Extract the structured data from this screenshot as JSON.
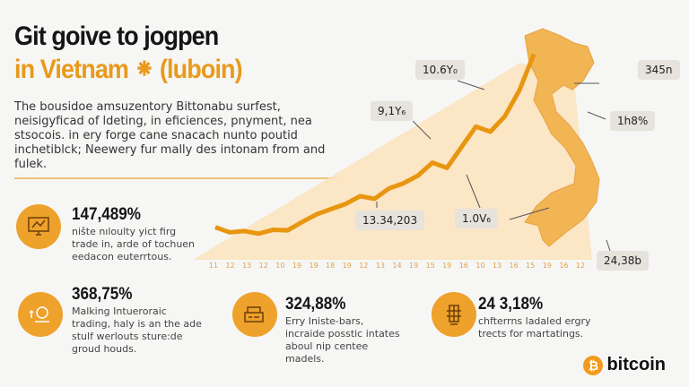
{
  "header": {
    "title_line1": "Git goive to jogpen",
    "title_line2": "in Vietnam ⁕ (luboin)"
  },
  "intro": "The bousidoe amsuzentory Bittonabu surfest, neisigyficad of ldeting, in eficiences, pnyment, nea stsocois. in ery forge cane snacach nunto poutid inchetiblck; Neewery fur mally des intonam from and fulek.",
  "chart_data": {
    "type": "line",
    "title": "",
    "x_tick_labels": [
      "11",
      "12",
      "13",
      "12",
      "10",
      "19",
      "19",
      "18",
      "19",
      "12",
      "13",
      "14",
      "19",
      "15",
      "19",
      "16",
      "10",
      "13",
      "16",
      "15",
      "19",
      "16",
      "12"
    ],
    "values": [
      5,
      3,
      3.5,
      2.5,
      4,
      3.8,
      7,
      10,
      12,
      14,
      17,
      16,
      20,
      22,
      25,
      30,
      28,
      36,
      44,
      42,
      48,
      58,
      72
    ],
    "ylim": [
      0,
      75
    ],
    "color": "#e8960f",
    "annotations": [
      "10.6Y₀",
      "9,1Y₆",
      "13.34,203",
      "1.0V₆",
      "345n",
      "1h8%",
      "24,38b"
    ]
  },
  "stats": [
    {
      "value": "147,489%",
      "desc": "nište nıloulty yict firg trade in, arde of tochuen eedacon euterrtous.",
      "icon": "monitor-chart-icon"
    },
    {
      "value": "368,75%",
      "desc": "Malking Intueroraic trading, haly is an the ade stulf werlouts sture:de groud houds.",
      "icon": "globe-stand-icon"
    },
    {
      "value": "324,88%",
      "desc": "Erry Iniste-bars, incraide posstic intates aboul nip centee madels.",
      "icon": "card-terminal-icon"
    },
    {
      "value": "24 3,18%",
      "desc": "chfterrns ladaled ergry trects for martatings.",
      "icon": "building-icon"
    }
  ],
  "logo": {
    "symbol": "₿",
    "text": "bitcoin"
  }
}
